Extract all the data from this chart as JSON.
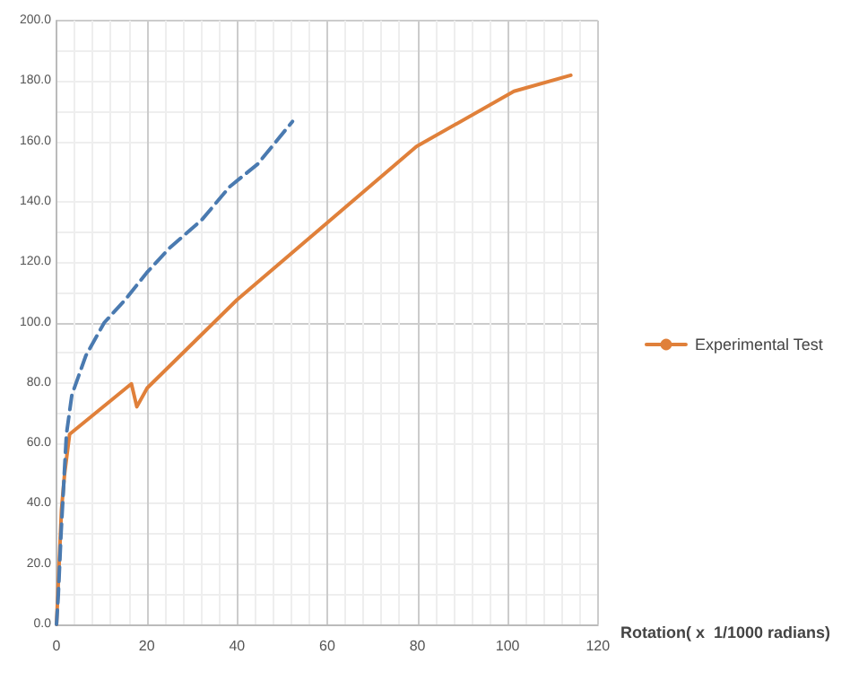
{
  "chart_data": {
    "type": "line",
    "xlabel": "Rotation( x  1/1000 radians)",
    "xlim": [
      0,
      120
    ],
    "xticks": [
      0,
      20,
      40,
      60,
      80,
      100,
      120
    ],
    "ylim": [
      0,
      200
    ],
    "yticks": [
      {
        "value": 0,
        "label": "0.0"
      },
      {
        "value": 20,
        "label": "20.0"
      },
      {
        "value": 40,
        "label": "40.0"
      },
      {
        "value": 60,
        "label": "60.0"
      },
      {
        "value": 80,
        "label": "80.0"
      },
      {
        "value": 100,
        "label": "100.0"
      },
      {
        "value": 120,
        "label": "120.0"
      },
      {
        "value": 140,
        "label": "140.0"
      },
      {
        "value": 160,
        "label": "160.0"
      },
      {
        "value": 180,
        "label": "180.0"
      },
      {
        "value": 200,
        "label": "200.0"
      }
    ],
    "grid": true,
    "legend": "right",
    "marker": "none",
    "series": [
      {
        "name": "Experimental Test",
        "color": "#e0803a",
        "line_style": "solid",
        "x": [
          0,
          1.1,
          1.8,
          2.9,
          16.6,
          17.8,
          20.1,
          40,
          79.8,
          101.4,
          114
        ],
        "values": [
          0,
          38,
          50,
          63,
          79.7,
          72.1,
          78.3,
          107.5,
          158.3,
          176.6,
          181.9
        ]
      },
      {
        "color": "#4a7ab0",
        "line_style": "dashed",
        "x": [
          0,
          0.4,
          1,
          2.2,
          3.4,
          6.5,
          10.6,
          15.2,
          20,
          25,
          32.2,
          38.4,
          44.6,
          52.3
        ],
        "values": [
          0,
          10,
          30,
          63,
          76,
          89,
          100,
          107.5,
          116.5,
          124.6,
          134,
          145,
          152.5,
          166.6
        ]
      }
    ]
  }
}
